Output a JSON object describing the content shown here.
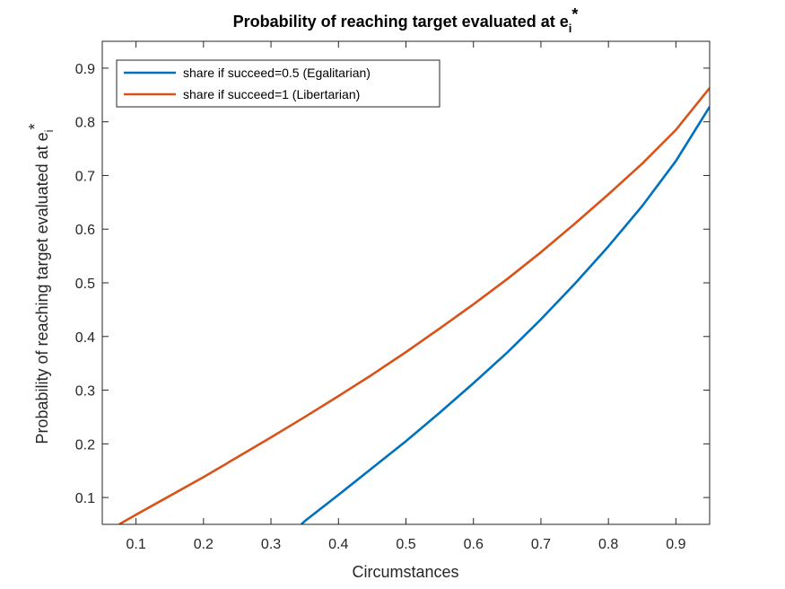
{
  "chart_data": {
    "type": "line",
    "title": "Probability of reaching target evaluated at e",
    "title_sub": "i",
    "title_sup": "*",
    "xlabel": "Circumstances",
    "ylabel": "Probability of reaching target evaluated at e",
    "ylabel_sub": "i",
    "ylabel_sup": "*",
    "xlim": [
      0.05,
      0.95
    ],
    "ylim": [
      0.05,
      0.95
    ],
    "xticks": [
      0.1,
      0.2,
      0.3,
      0.4,
      0.5,
      0.6,
      0.7,
      0.8,
      0.9
    ],
    "yticks": [
      0.1,
      0.2,
      0.3,
      0.4,
      0.5,
      0.6,
      0.7,
      0.8,
      0.9
    ],
    "xtick_labels": [
      "0.1",
      "0.2",
      "0.3",
      "0.4",
      "0.5",
      "0.6",
      "0.7",
      "0.8",
      "0.9"
    ],
    "ytick_labels": [
      "0.1",
      "0.2",
      "0.3",
      "0.4",
      "0.5",
      "0.6",
      "0.7",
      "0.8",
      "0.9"
    ],
    "grid": false,
    "legend_position": "top-left",
    "series": [
      {
        "name": "share if succeed=0.5 (Egalitarian)",
        "color": "#0072BD",
        "x": [
          0.345,
          0.35,
          0.4,
          0.45,
          0.5,
          0.55,
          0.6,
          0.65,
          0.7,
          0.75,
          0.8,
          0.85,
          0.9,
          0.95
        ],
        "y": [
          0.05,
          0.056,
          0.105,
          0.155,
          0.205,
          0.258,
          0.313,
          0.37,
          0.432,
          0.498,
          0.568,
          0.643,
          0.727,
          0.828
        ]
      },
      {
        "name": "share if succeed=1 (Libertarian)",
        "color": "#D95319",
        "x": [
          0.075,
          0.1,
          0.15,
          0.2,
          0.25,
          0.3,
          0.35,
          0.4,
          0.45,
          0.5,
          0.55,
          0.6,
          0.65,
          0.7,
          0.75,
          0.8,
          0.85,
          0.9,
          0.95
        ],
        "y": [
          0.05,
          0.068,
          0.103,
          0.138,
          0.175,
          0.212,
          0.25,
          0.289,
          0.329,
          0.371,
          0.415,
          0.46,
          0.507,
          0.557,
          0.61,
          0.665,
          0.722,
          0.785,
          0.863
        ]
      }
    ]
  }
}
